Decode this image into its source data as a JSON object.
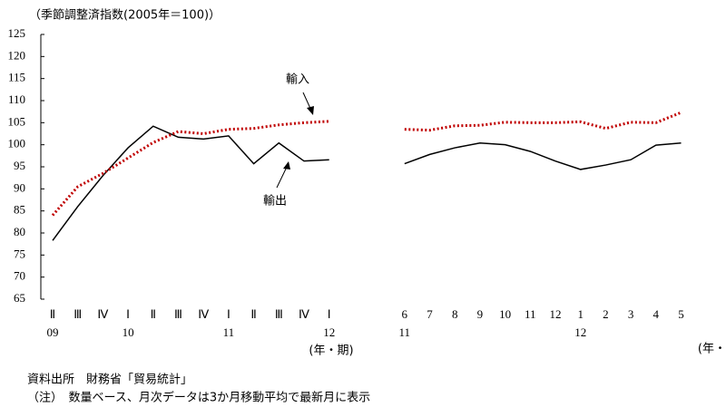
{
  "chart_data": {
    "type": "line",
    "title": "（季節調整済指数(2005年＝100)）",
    "categories": [
      "Ⅱ",
      "Ⅲ",
      "Ⅳ",
      "Ⅰ",
      "Ⅱ",
      "Ⅲ",
      "Ⅳ",
      "Ⅰ",
      "Ⅱ",
      "Ⅲ",
      "Ⅳ",
      "Ⅰ",
      null,
      null,
      "6",
      "7",
      "8",
      "9",
      "10",
      "11",
      "12",
      "1",
      "2",
      "3",
      "4",
      "5"
    ],
    "year_labels": [
      "09",
      null,
      null,
      "10",
      null,
      null,
      null,
      "11",
      null,
      null,
      null,
      "12",
      null,
      null,
      "11",
      null,
      null,
      null,
      null,
      null,
      null,
      "12",
      null,
      null,
      null,
      null
    ],
    "x_unit_labels": [
      "(年・期)",
      "(年・"
    ],
    "series": [
      {
        "name": "輸出",
        "color": "#000000",
        "dashed": false,
        "values": [
          78.3,
          86,
          93,
          99.3,
          104.2,
          101.7,
          101.3,
          102,
          95.7,
          100.4,
          96.3,
          96.6,
          null,
          null,
          95.7,
          97.8,
          99.3,
          100.4,
          100,
          98.5,
          96.3,
          94.4,
          95.4,
          96.6,
          99.9,
          100.4
        ]
      },
      {
        "name": "輸入",
        "color": "#c00000",
        "dashed": true,
        "values": [
          84,
          90.5,
          93.5,
          97,
          100.5,
          103,
          102.5,
          103.5,
          103.7,
          104.5,
          105,
          105.3,
          null,
          null,
          103.5,
          103.3,
          104.3,
          104.4,
          105.1,
          105,
          105,
          105.2,
          103.7,
          105.1,
          105,
          107.3
        ]
      }
    ],
    "ylim": [
      65,
      125
    ],
    "yticks": [
      65,
      70,
      75,
      80,
      85,
      90,
      95,
      100,
      105,
      110,
      115,
      120,
      125
    ],
    "notes": [
      "資料出所　財務省「貿易統計」",
      "（注）　数量ベース、月次データは3か月移動平均で最新月に表示"
    ]
  }
}
